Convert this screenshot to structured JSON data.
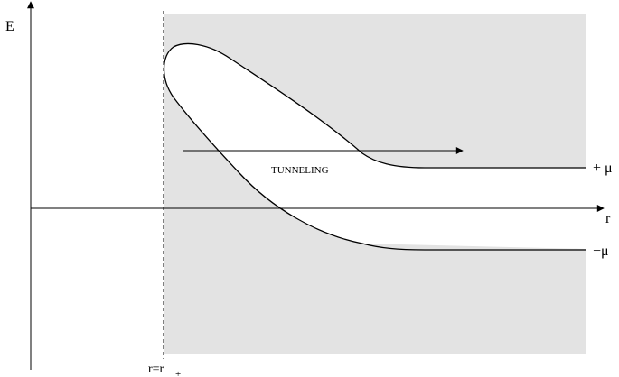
{
  "axes": {
    "y_label": "E",
    "x_label": "r"
  },
  "annotations": {
    "horizon_label_main": "r=r",
    "horizon_label_sub": "+",
    "tunneling_label": "TUNNELING",
    "plus_mu_label": "+ μ",
    "minus_mu_label": "−μ"
  },
  "colors": {
    "forbidden_region": "#e3e3e3",
    "lines": "#000000",
    "background": "#ffffff"
  }
}
